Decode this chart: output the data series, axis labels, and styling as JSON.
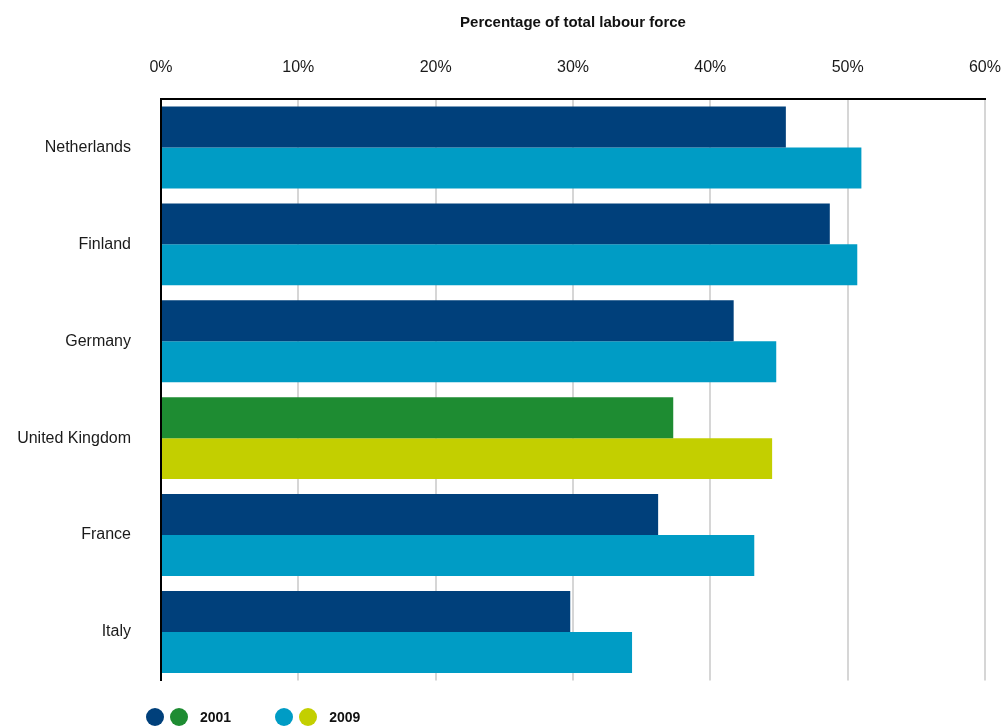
{
  "chart_data": {
    "type": "bar",
    "orientation": "horizontal",
    "xlabel": "Percentage of total labour force",
    "categories": [
      "Netherlands",
      "Finland",
      "Germany",
      "United Kingdom",
      "France",
      "Italy"
    ],
    "series": [
      {
        "name": "2001",
        "color": "#00407b",
        "colors": [
          "#00407b",
          "#00407b",
          "#00407b",
          "#1e8c32",
          "#00407b",
          "#00407b"
        ],
        "values": [
          45.5,
          48.7,
          41.7,
          37.3,
          36.2,
          29.8
        ]
      },
      {
        "name": "2009",
        "color": "#009cc5",
        "colors": [
          "#009cc5",
          "#009cc5",
          "#009cc5",
          "#c3cf00",
          "#009cc5",
          "#009cc5"
        ],
        "values": [
          51.0,
          50.7,
          44.8,
          44.5,
          43.2,
          34.3
        ]
      }
    ],
    "xlim": [
      0,
      60
    ],
    "xticks": [
      {
        "value": 0,
        "label": "0%"
      },
      {
        "value": 10,
        "label": "10%"
      },
      {
        "value": 20,
        "label": "20%"
      },
      {
        "value": 30,
        "label": "30%"
      },
      {
        "value": 40,
        "label": "40%"
      },
      {
        "value": 50,
        "label": "50%"
      },
      {
        "value": 60,
        "label": "60%"
      }
    ],
    "grid": "x",
    "legend": "bottom left"
  }
}
